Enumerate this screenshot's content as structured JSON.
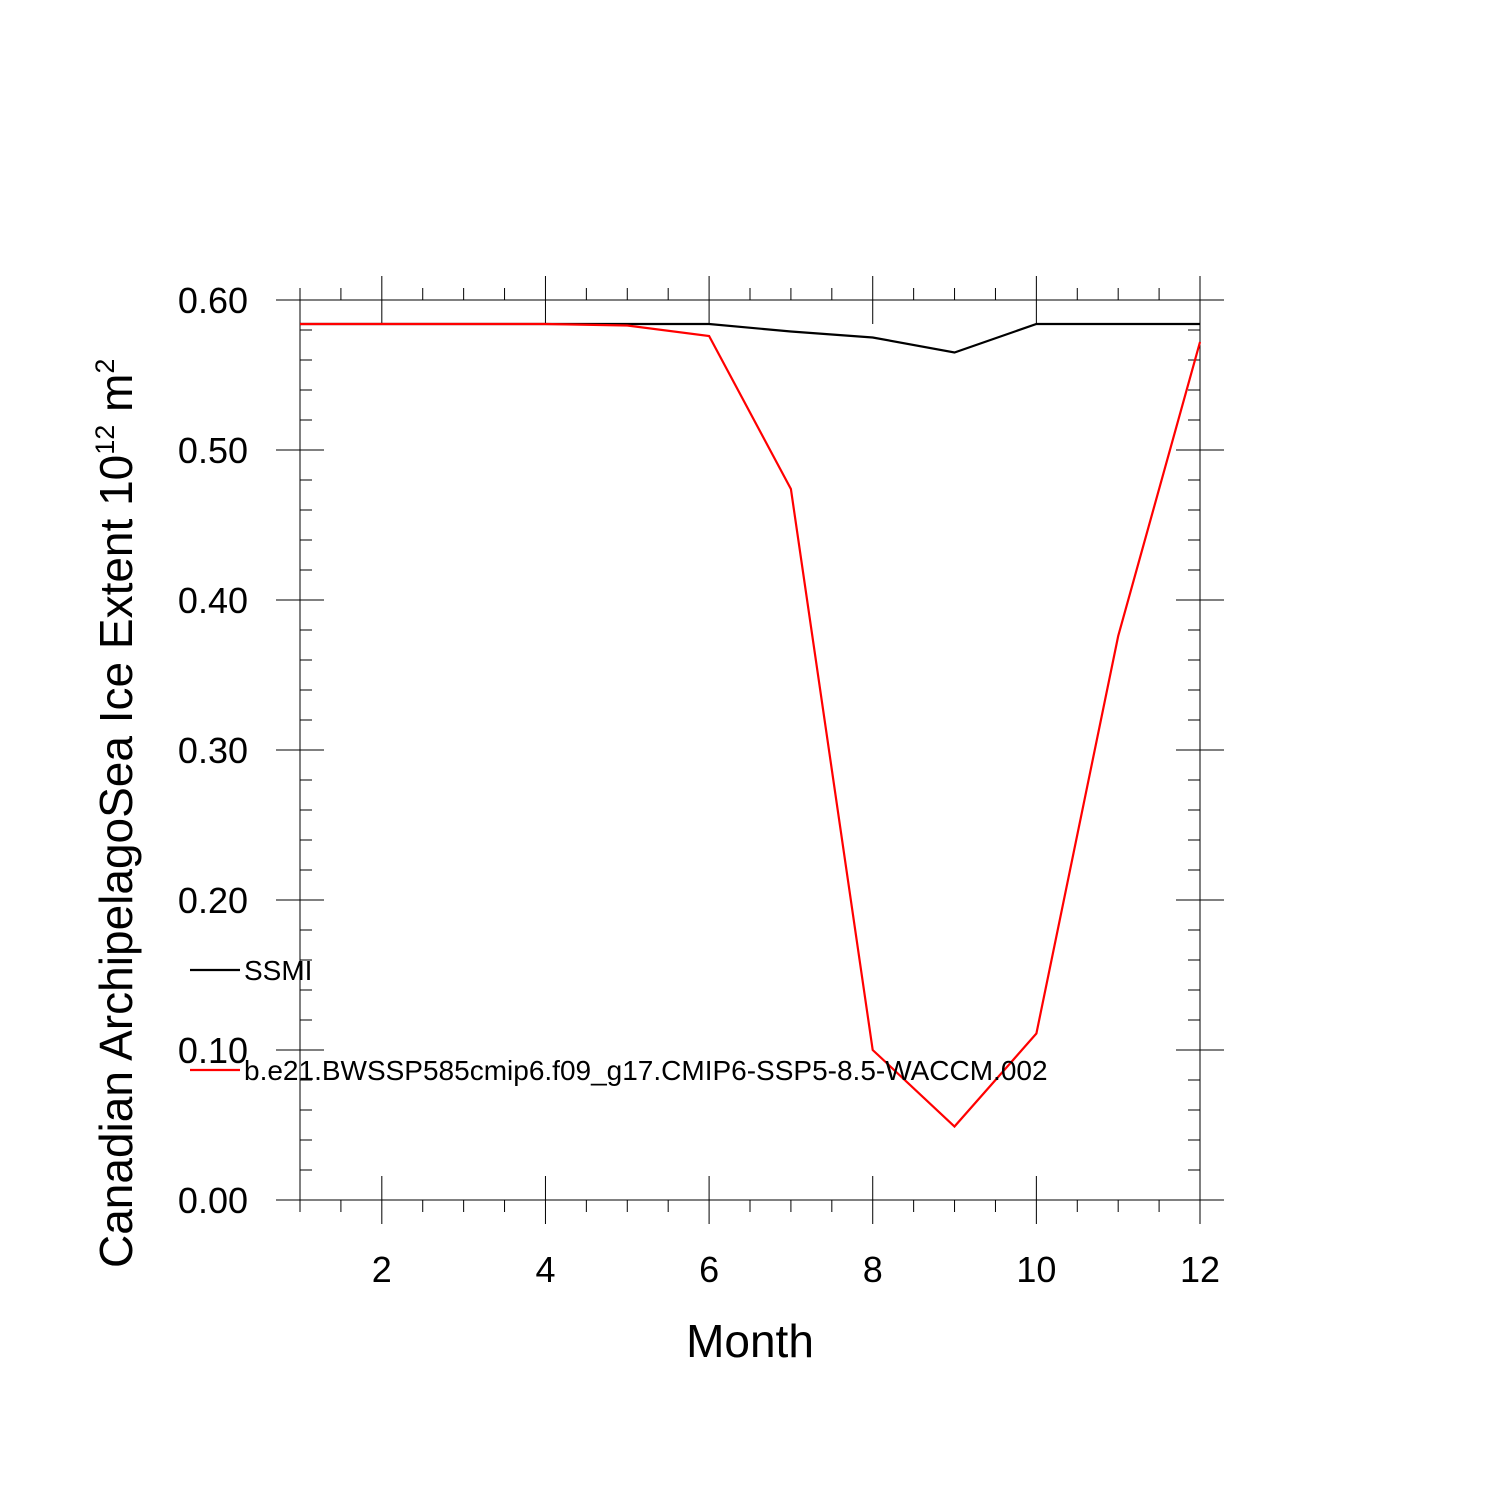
{
  "chart_data": {
    "type": "line",
    "xlabel": "Month",
    "ylabel": {
      "text": "Canadian ArchipelagoSea Ice Extent 10",
      "exponent": "12",
      "unit": " m",
      "unit_exponent": "2"
    },
    "xlim": [
      1,
      12
    ],
    "ylim": [
      0,
      0.6
    ],
    "xticks": [
      2,
      4,
      6,
      8,
      10,
      12
    ],
    "xtick_labels": [
      "2",
      "4",
      "6",
      "8",
      "10",
      "12"
    ],
    "yticks": [
      0,
      0.1,
      0.2,
      0.3,
      0.4,
      0.5,
      0.6
    ],
    "ytick_labels": [
      "0.00",
      "0.10",
      "0.20",
      "0.30",
      "0.40",
      "0.50",
      "0.60"
    ],
    "grid": false,
    "legend_position": "left",
    "series": [
      {
        "name": "SSMI",
        "color": "#000000",
        "x": [
          1,
          2,
          3,
          4,
          5,
          6,
          7,
          8,
          9,
          10,
          11,
          12
        ],
        "values": [
          0.584,
          0.584,
          0.584,
          0.584,
          0.584,
          0.584,
          0.579,
          0.575,
          0.565,
          0.584,
          0.584,
          0.584
        ]
      },
      {
        "name": "b.e21.BWSSP585cmip6.f09_g17.CMIP6-SSP5-8.5-WACCM.002",
        "color": "#ff0000",
        "x": [
          1,
          2,
          3,
          4,
          5,
          6,
          7,
          8,
          9,
          10,
          11,
          12
        ],
        "values": [
          0.584,
          0.584,
          0.584,
          0.584,
          0.583,
          0.576,
          0.474,
          0.1,
          0.049,
          0.111,
          0.376,
          0.572
        ]
      }
    ]
  }
}
